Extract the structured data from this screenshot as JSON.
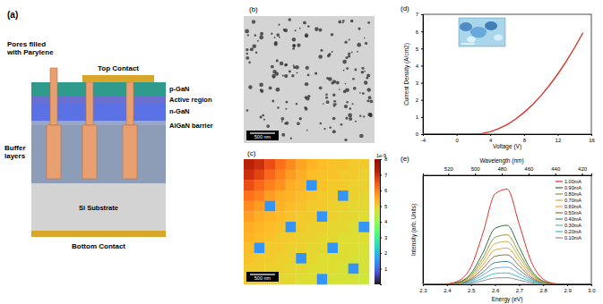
{
  "diagram": {
    "panel": "(a)",
    "pores_label": "Pores filled with Parylene",
    "top_contact": "Top Contact",
    "layers": [
      "p-GaN",
      "Active region",
      "n-GaN",
      "AlGaN barrier"
    ],
    "buffer": "Buffer layers",
    "substrate": "Si Substrate",
    "bottom_contact": "Bottom Contact"
  },
  "image": {
    "panel": "(b)",
    "scale_bar": "500 nm"
  },
  "chart_data": [
    {
      "type": "heatmap",
      "title": "(c)",
      "annotations": [
        "500 nm"
      ],
      "cells": [
        [
          7.2,
          7.0,
          6.6,
          6.2,
          5.9,
          5.6,
          5.4,
          5.3,
          5.2,
          5.2,
          5.1,
          5.1
        ],
        [
          7.0,
          6.7,
          6.3,
          6.0,
          5.7,
          5.5,
          5.3,
          5.2,
          5.2,
          5.1,
          5.1,
          5.0
        ],
        [
          6.6,
          6.3,
          6.0,
          5.8,
          5.5,
          5.4,
          1.5,
          5.2,
          5.1,
          5.1,
          5.0,
          5.0
        ],
        [
          6.2,
          6.0,
          5.7,
          5.5,
          5.4,
          5.3,
          5.2,
          5.1,
          5.1,
          1.5,
          5.0,
          4.9
        ],
        [
          5.9,
          5.7,
          1.5,
          5.4,
          5.3,
          5.2,
          5.1,
          5.1,
          5.0,
          5.0,
          4.9,
          4.9
        ],
        [
          5.7,
          5.5,
          5.4,
          5.3,
          5.2,
          5.1,
          5.1,
          1.5,
          5.0,
          4.9,
          4.9,
          4.8
        ],
        [
          5.5,
          5.4,
          5.3,
          5.2,
          1.5,
          5.1,
          5.0,
          5.0,
          4.9,
          4.9,
          4.8,
          1.5
        ],
        [
          5.4,
          5.3,
          5.2,
          5.1,
          5.1,
          5.0,
          5.0,
          4.9,
          4.9,
          4.8,
          4.8,
          4.8
        ],
        [
          5.3,
          1.5,
          5.1,
          5.1,
          5.0,
          5.0,
          4.9,
          4.9,
          1.5,
          4.8,
          4.8,
          4.7
        ],
        [
          5.2,
          5.1,
          5.1,
          5.0,
          5.0,
          1.5,
          4.9,
          4.8,
          4.8,
          4.8,
          4.7,
          4.7
        ],
        [
          5.1,
          5.1,
          5.0,
          5.0,
          4.9,
          4.9,
          4.8,
          4.8,
          4.8,
          4.7,
          1.5,
          4.7
        ],
        [
          5.1,
          5.0,
          5.0,
          4.9,
          4.9,
          4.8,
          4.8,
          1.5,
          4.7,
          4.7,
          4.7,
          4.6
        ]
      ],
      "colorbar_lim": [
        0,
        8
      ],
      "colorbar_ticks": [
        1,
        2,
        3,
        4,
        5,
        6,
        7,
        8
      ],
      "colorbar_label": "1e-9"
    },
    {
      "type": "line",
      "title": "(d)",
      "x_label": "Voltage (V)",
      "y_label": "Current Density (A/cm2)",
      "x": [
        -4,
        -3,
        -2,
        -1,
        0,
        1,
        2,
        3,
        4,
        5,
        6,
        7,
        8,
        9,
        10,
        11,
        12,
        13,
        14,
        15
      ],
      "values": [
        0,
        0,
        0,
        0,
        0,
        0,
        0,
        0.035,
        0.14,
        0.315,
        0.56,
        0.875,
        1.26,
        1.715,
        2.24,
        2.835,
        3.5,
        4.235,
        5.04,
        5.915
      ],
      "color": "#d9342b",
      "xlim": [
        -4,
        16
      ],
      "xticks": [
        -4,
        0,
        4,
        8,
        12,
        16
      ],
      "ylim": [
        0,
        7
      ],
      "yticks": [
        0,
        1,
        2,
        3,
        4,
        5,
        6,
        7
      ]
    },
    {
      "type": "line",
      "title": "(e)",
      "x_label": "Energy (eV)",
      "x2_label": "Wavelength (nm)",
      "y_label": "Intensity (arb. Units)",
      "x": [
        2.3,
        2.35,
        2.4,
        2.45,
        2.5,
        2.55,
        2.6,
        2.65,
        2.7,
        2.75,
        2.8,
        2.85,
        2.9,
        2.95,
        3.0
      ],
      "series": [
        {
          "name": "1.00mA",
          "color": "#e0302a",
          "values": [
            0,
            0,
            0.005,
            0.037,
            0.178,
            0.52,
            0.912,
            0.96,
            0.607,
            0.23,
            0.052,
            0.007,
            0.001,
            0,
            0
          ]
        },
        {
          "name": "0.90mA",
          "color": "#2e6b3a",
          "values": [
            0,
            0,
            0.003,
            0.023,
            0.11,
            0.322,
            0.565,
            0.595,
            0.376,
            0.143,
            0.032,
            0.004,
            0.001,
            0,
            0
          ]
        },
        {
          "name": "0.80mA",
          "color": "#8c9a3a",
          "values": [
            0,
            0,
            0.003,
            0.019,
            0.093,
            0.27,
            0.474,
            0.499,
            0.316,
            0.12,
            0.027,
            0.004,
            0.001,
            0,
            0
          ]
        },
        {
          "name": "0.70mA",
          "color": "#c8b44a",
          "values": [
            0,
            0,
            0.002,
            0.017,
            0.08,
            0.234,
            0.41,
            0.432,
            0.273,
            0.104,
            0.023,
            0.003,
            0,
            0,
            0
          ]
        },
        {
          "name": "0.60mA",
          "color": "#e0a040",
          "values": [
            0,
            0,
            0.002,
            0.014,
            0.068,
            0.198,
            0.347,
            0.365,
            0.231,
            0.087,
            0.02,
            0.003,
            0,
            0,
            0
          ]
        },
        {
          "name": "0.50mA",
          "color": "#9a6a3a",
          "values": [
            0,
            0,
            0.002,
            0.011,
            0.055,
            0.161,
            0.283,
            0.298,
            0.188,
            0.071,
            0.016,
            0.002,
            0,
            0,
            0
          ]
        },
        {
          "name": "0.40mA",
          "color": "#3a8a8a",
          "values": [
            0,
            0,
            0.001,
            0.009,
            0.043,
            0.125,
            0.219,
            0.23,
            0.146,
            0.055,
            0.012,
            0.002,
            0,
            0,
            0
          ]
        },
        {
          "name": "0.30mA",
          "color": "#6fa8dc",
          "values": [
            0,
            0,
            0.001,
            0.007,
            0.032,
            0.094,
            0.164,
            0.173,
            0.109,
            0.041,
            0.009,
            0.001,
            0,
            0,
            0
          ]
        },
        {
          "name": "0.20mA",
          "color": "#40c0d0",
          "values": [
            0,
            0,
            0.001,
            0.004,
            0.021,
            0.062,
            0.109,
            0.115,
            0.073,
            0.028,
            0.006,
            0.001,
            0,
            0,
            0
          ]
        },
        {
          "name": "0.10mA",
          "color": "#909090",
          "values": [
            0,
            0,
            0,
            0.003,
            0.012,
            0.036,
            0.064,
            0.067,
            0.042,
            0.016,
            0.004,
            0,
            0,
            0,
            0
          ]
        }
      ],
      "xlim": [
        2.3,
        3.0
      ],
      "xticks": [
        2.3,
        2.4,
        2.5,
        2.6,
        2.7,
        2.8,
        2.9,
        {
          "value": 3.0,
          "label": "3.0"
        }
      ],
      "x2lim": [
        539,
        413
      ],
      "x2ticks": [
        520,
        500,
        480,
        460,
        440,
        420
      ],
      "ylim": [
        0,
        1.1
      ],
      "tick_labels": "x",
      "legend": "upper right"
    }
  ]
}
